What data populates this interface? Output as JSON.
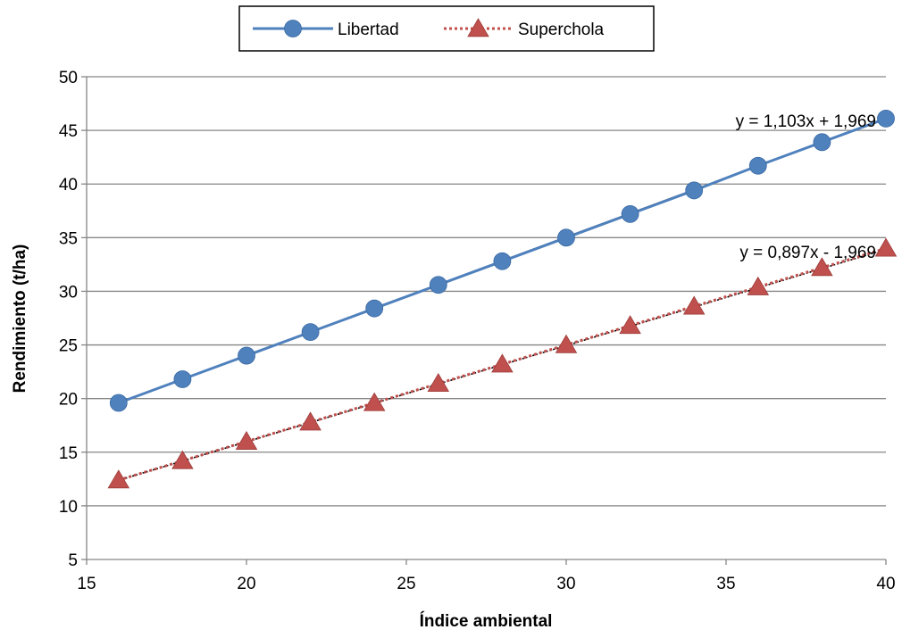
{
  "chart_data": {
    "type": "scatter",
    "xlabel": "Índice ambiental",
    "ylabel": "Rendimiento (t/ha)",
    "xlim": [
      15,
      40
    ],
    "ylim": [
      5,
      50
    ],
    "x_ticks": [
      "15",
      "20",
      "25",
      "30",
      "35",
      "40"
    ],
    "y_ticks": [
      "5",
      "10",
      "15",
      "20",
      "25",
      "30",
      "35",
      "40",
      "45",
      "50"
    ],
    "x_tick_values": [
      15,
      20,
      25,
      30,
      35,
      40
    ],
    "y_tick_values": [
      5,
      10,
      15,
      20,
      25,
      30,
      35,
      40,
      45,
      50
    ],
    "grid": "horizontal",
    "legend_position": "top-center",
    "series": [
      {
        "name": "Libertad",
        "color": "#4F81BD",
        "marker": "circle",
        "line": "solid",
        "x": [
          16,
          18,
          20,
          22,
          24,
          26,
          28,
          30,
          32,
          34,
          36,
          38,
          40
        ],
        "y": [
          19.6,
          21.8,
          24.0,
          26.2,
          28.4,
          30.6,
          32.8,
          35.0,
          37.2,
          39.4,
          41.7,
          43.9,
          46.1
        ]
      },
      {
        "name": "Superchola",
        "color": "#C0504D",
        "marker": "triangle",
        "line": "dotted",
        "x": [
          16,
          18,
          20,
          22,
          24,
          26,
          28,
          30,
          32,
          34,
          36,
          38,
          40
        ],
        "y": [
          12.4,
          14.2,
          16.0,
          17.8,
          19.6,
          21.4,
          23.2,
          25.0,
          26.8,
          28.6,
          30.4,
          32.2,
          34.0
        ]
      }
    ],
    "trendlines": [
      {
        "series": "Libertad",
        "slope": 1.103,
        "intercept": 1.969,
        "style": "solid",
        "color": "#0D1B2E",
        "label": "y = 1,103x + 1,969"
      },
      {
        "series": "Superchola",
        "slope": 0.897,
        "intercept": -1.969,
        "style": "dotted",
        "color": "#000000",
        "label": "y = 0,897x - 1,969"
      }
    ]
  }
}
